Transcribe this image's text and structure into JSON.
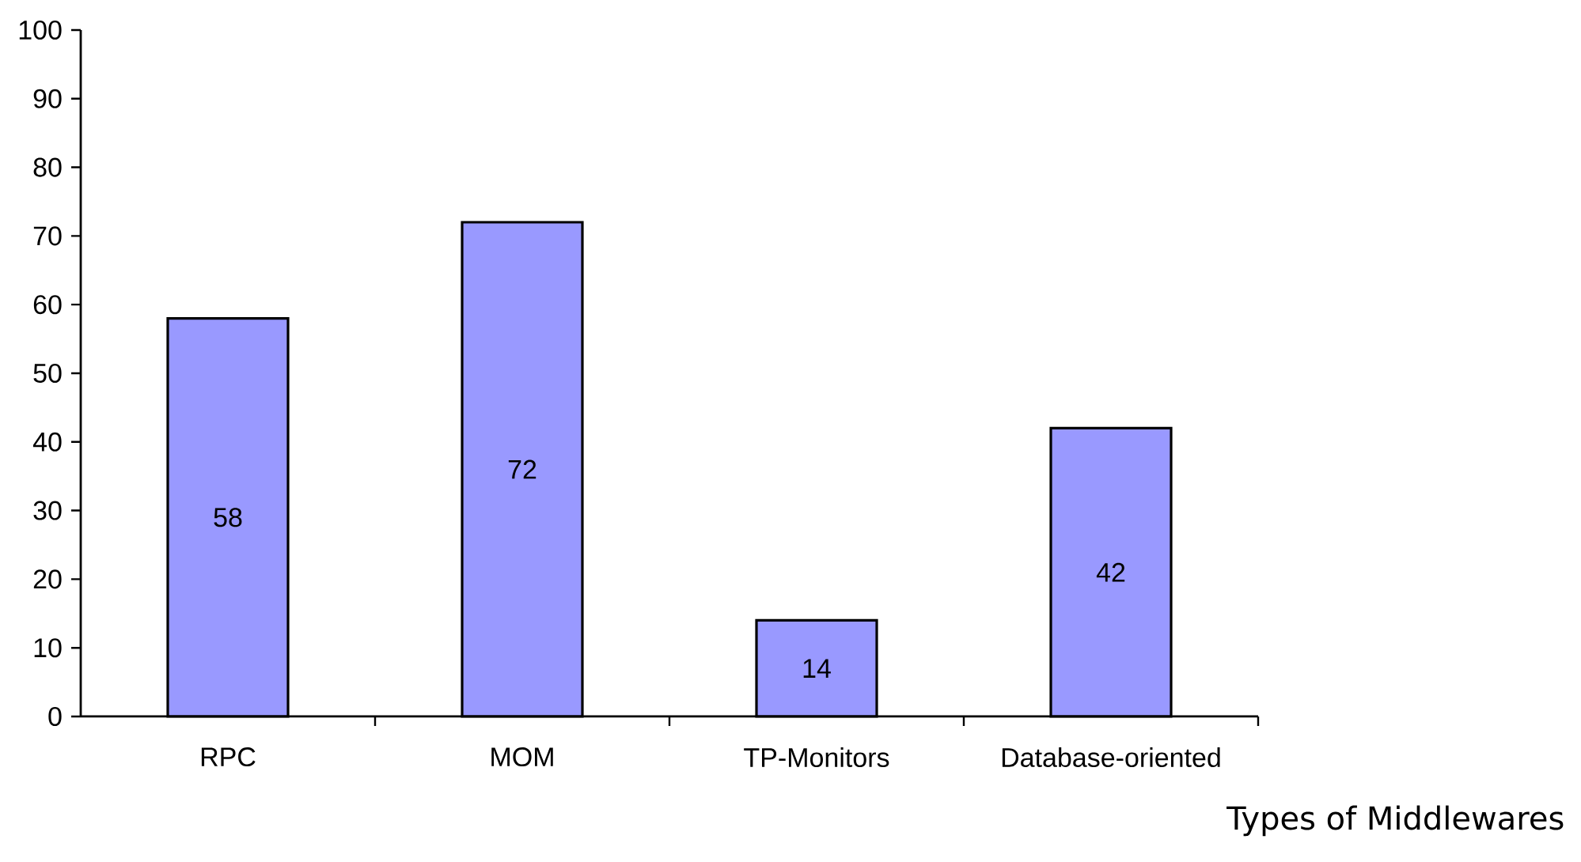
{
  "chart_data": {
    "type": "bar",
    "categories": [
      "RPC",
      "MOM",
      "TP-Monitors",
      "Database-oriented"
    ],
    "values": [
      58,
      72,
      14,
      42
    ],
    "color": "#9999ff",
    "data_labels": true,
    "xlabel": "Types of Middlewares",
    "ylim": [
      0,
      100
    ],
    "yticks": [
      0,
      10,
      20,
      30,
      40,
      50,
      60,
      70,
      80,
      90,
      100
    ]
  }
}
